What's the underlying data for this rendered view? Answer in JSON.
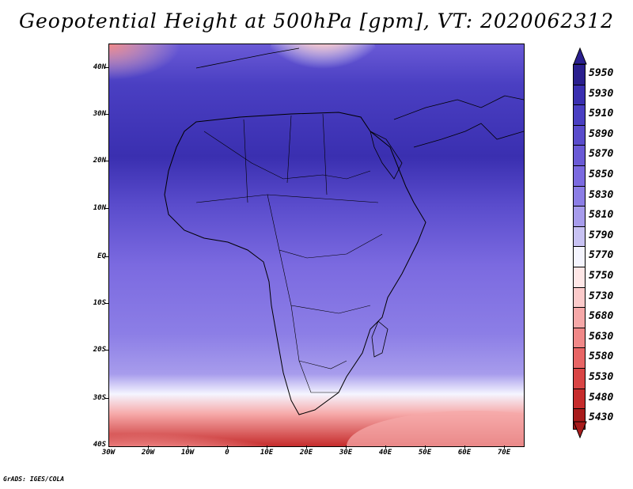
{
  "title": "Geopotential Height at 500hPa [gpm], VT: 2020062312",
  "credit": "GrADS: IGES/COLA",
  "latitude_labels": [
    "40N",
    "30N",
    "20N",
    "10N",
    "EQ",
    "10S",
    "20S",
    "30S",
    "40S"
  ],
  "longitude_labels": [
    "30W",
    "20W",
    "10W",
    "0",
    "10E",
    "20E",
    "30E",
    "40E",
    "50E",
    "60E",
    "70E"
  ],
  "colorbar": {
    "levels": [
      "5950",
      "5930",
      "5910",
      "5890",
      "5870",
      "5850",
      "5830",
      "5810",
      "5790",
      "5770",
      "5750",
      "5730",
      "5680",
      "5630",
      "5580",
      "5530",
      "5480",
      "5430"
    ],
    "colors": [
      "#2a1f8e",
      "#3a2fb0",
      "#4a3fc2",
      "#5a4ccc",
      "#6a5ad6",
      "#7b6ae0",
      "#8c7ee6",
      "#a79cec",
      "#c8c2f3",
      "#f5f5ff",
      "#ffe7e7",
      "#fbcaca",
      "#f6a8a8",
      "#f08888",
      "#e86565",
      "#d94545",
      "#c62c2c",
      "#a81c1c"
    ]
  }
}
